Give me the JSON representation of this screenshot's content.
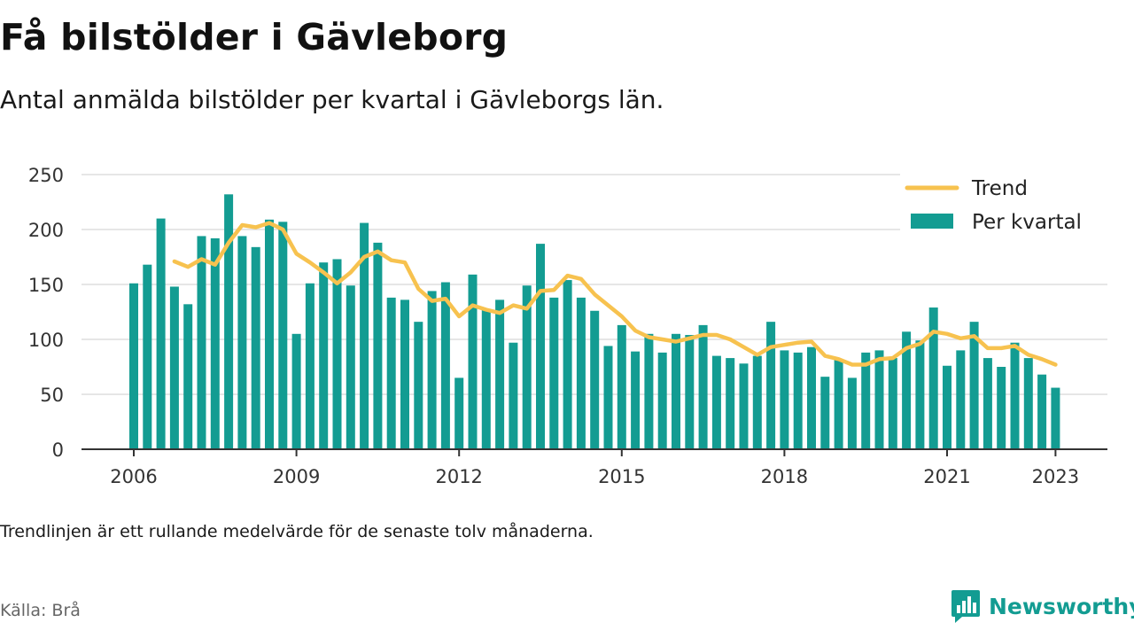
{
  "header": {
    "title": "Få bilstölder i Gävleborg",
    "subtitle": "Antal anmälda bilstölder per kvartal i Gävleborgs län."
  },
  "footer": {
    "note": "Trendlinjen är ett rullande medelvärde för de senaste tolv månaderna.",
    "source": "Källa: Brå",
    "brand": "Newsworthy"
  },
  "colors": {
    "bars": "#139c92",
    "trend": "#f7c24f",
    "grid": "#dddddd",
    "axis": "#333333"
  },
  "chart_data": {
    "type": "bar",
    "ylim": [
      0,
      250
    ],
    "yticks": [
      0,
      50,
      100,
      150,
      200,
      250
    ],
    "xticks": [
      "2006",
      "2009",
      "2012",
      "2015",
      "2018",
      "2021",
      "2023"
    ],
    "grid": true,
    "legend_position": "top-right",
    "series": [
      {
        "name": "Per kvartal",
        "type": "bar",
        "values": [
          151,
          168,
          210,
          148,
          132,
          194,
          192,
          232,
          194,
          184,
          209,
          207,
          105,
          151,
          170,
          173,
          149,
          206,
          188,
          138,
          136,
          116,
          144,
          152,
          65,
          159,
          127,
          136,
          97,
          149,
          187,
          138,
          154,
          138,
          126,
          94,
          113,
          89,
          105,
          88,
          105,
          104,
          113,
          85,
          83,
          78,
          85,
          116,
          90,
          88,
          93,
          66,
          82,
          65,
          88,
          90,
          83,
          107,
          99,
          129,
          76,
          90,
          116,
          83,
          75,
          97,
          83,
          68,
          56
        ]
      },
      {
        "name": "Trend",
        "type": "line",
        "values": [
          null,
          null,
          null,
          171,
          166,
          173,
          168,
          188,
          204,
          202,
          206,
          200,
          178,
          170,
          161,
          151,
          161,
          175,
          180,
          172,
          170,
          146,
          135,
          137,
          121,
          131,
          127,
          124,
          131,
          128,
          144,
          145,
          158,
          155,
          141,
          131,
          121,
          108,
          102,
          100,
          98,
          101,
          104,
          104,
          100,
          93,
          86,
          93,
          95,
          97,
          98,
          85,
          82,
          77,
          77,
          82,
          83,
          92,
          96,
          107,
          105,
          101,
          103,
          92,
          92,
          94,
          86,
          82,
          77
        ]
      }
    ]
  }
}
